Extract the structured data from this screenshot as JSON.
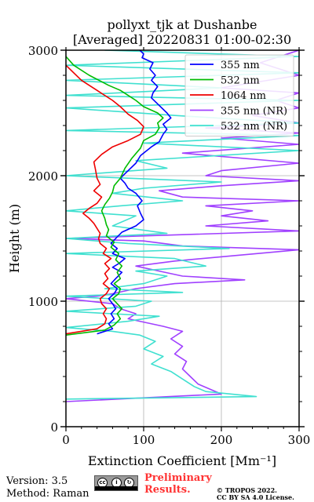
{
  "chart_data": {
    "type": "line",
    "title": [
      "pollyxt_tjk at Dushanbe",
      "[Averaged] 20220831 01:00-02:30"
    ],
    "xlabel": "Extinction Coefficient [Mm⁻¹]",
    "ylabel": "Height (m)",
    "xlim": [
      0,
      300
    ],
    "ylim": [
      0,
      3000
    ],
    "xticks": [
      "0",
      "100",
      "200",
      "300"
    ],
    "yticks": [
      "0",
      "1000",
      "2000",
      "3000"
    ],
    "grid": true,
    "legend_position": "top-right",
    "series": [
      {
        "name": "355 nm",
        "color": "#0000ff",
        "points": [
          [
            40,
            740
          ],
          [
            60,
            780
          ],
          [
            55,
            820
          ],
          [
            62,
            860
          ],
          [
            58,
            900
          ],
          [
            64,
            940
          ],
          [
            60,
            980
          ],
          [
            55,
            1020
          ],
          [
            62,
            1060
          ],
          [
            66,
            1100
          ],
          [
            58,
            1140
          ],
          [
            64,
            1180
          ],
          [
            72,
            1230
          ],
          [
            60,
            1270
          ],
          [
            68,
            1300
          ],
          [
            76,
            1340
          ],
          [
            60,
            1380
          ],
          [
            66,
            1420
          ],
          [
            58,
            1460
          ],
          [
            64,
            1500
          ],
          [
            72,
            1550
          ],
          [
            90,
            1600
          ],
          [
            100,
            1650
          ],
          [
            96,
            1700
          ],
          [
            92,
            1760
          ],
          [
            98,
            1800
          ],
          [
            90,
            1860
          ],
          [
            80,
            1900
          ],
          [
            76,
            1940
          ],
          [
            70,
            1980
          ],
          [
            80,
            2040
          ],
          [
            90,
            2100
          ],
          [
            96,
            2160
          ],
          [
            110,
            2230
          ],
          [
            120,
            2270
          ],
          [
            125,
            2330
          ],
          [
            130,
            2370
          ],
          [
            125,
            2410
          ],
          [
            135,
            2460
          ],
          [
            130,
            2500
          ],
          [
            120,
            2560
          ],
          [
            110,
            2620
          ],
          [
            112,
            2660
          ],
          [
            118,
            2710
          ],
          [
            110,
            2760
          ],
          [
            115,
            2800
          ],
          [
            108,
            2850
          ],
          [
            112,
            2900
          ],
          [
            98,
            2940
          ],
          [
            100,
            2970
          ],
          [
            95,
            3000
          ]
        ]
      },
      {
        "name": "532 nm",
        "color": "#00bb00",
        "points": [
          [
            0,
            730
          ],
          [
            50,
            770
          ],
          [
            62,
            810
          ],
          [
            70,
            860
          ],
          [
            66,
            900
          ],
          [
            72,
            940
          ],
          [
            66,
            980
          ],
          [
            60,
            1020
          ],
          [
            68,
            1060
          ],
          [
            70,
            1100
          ],
          [
            62,
            1140
          ],
          [
            70,
            1180
          ],
          [
            66,
            1230
          ],
          [
            72,
            1280
          ],
          [
            64,
            1330
          ],
          [
            68,
            1380
          ],
          [
            58,
            1430
          ],
          [
            62,
            1470
          ],
          [
            52,
            1520
          ],
          [
            55,
            1570
          ],
          [
            52,
            1610
          ],
          [
            50,
            1660
          ],
          [
            46,
            1720
          ],
          [
            50,
            1770
          ],
          [
            56,
            1820
          ],
          [
            60,
            1870
          ],
          [
            62,
            1920
          ],
          [
            70,
            1980
          ],
          [
            76,
            2060
          ],
          [
            85,
            2140
          ],
          [
            96,
            2220
          ],
          [
            100,
            2280
          ],
          [
            115,
            2330
          ],
          [
            120,
            2380
          ],
          [
            118,
            2420
          ],
          [
            125,
            2460
          ],
          [
            118,
            2500
          ],
          [
            100,
            2550
          ],
          [
            90,
            2600
          ],
          [
            80,
            2640
          ],
          [
            70,
            2680
          ],
          [
            55,
            2720
          ],
          [
            30,
            2800
          ],
          [
            10,
            2880
          ],
          [
            0,
            2950
          ]
        ]
      },
      {
        "name": "1064 nm",
        "color": "#ee0000",
        "points": [
          [
            0,
            740
          ],
          [
            40,
            780
          ],
          [
            50,
            820
          ],
          [
            52,
            860
          ],
          [
            48,
            900
          ],
          [
            52,
            940
          ],
          [
            46,
            980
          ],
          [
            44,
            1020
          ],
          [
            52,
            1060
          ],
          [
            56,
            1100
          ],
          [
            48,
            1140
          ],
          [
            54,
            1180
          ],
          [
            50,
            1220
          ],
          [
            56,
            1260
          ],
          [
            50,
            1300
          ],
          [
            58,
            1340
          ],
          [
            48,
            1380
          ],
          [
            52,
            1420
          ],
          [
            44,
            1460
          ],
          [
            42,
            1500
          ],
          [
            44,
            1540
          ],
          [
            40,
            1580
          ],
          [
            36,
            1620
          ],
          [
            30,
            1660
          ],
          [
            22,
            1700
          ],
          [
            30,
            1740
          ],
          [
            40,
            1780
          ],
          [
            46,
            1830
          ],
          [
            36,
            1880
          ],
          [
            44,
            1930
          ],
          [
            40,
            1980
          ],
          [
            38,
            2050
          ],
          [
            36,
            2110
          ],
          [
            46,
            2170
          ],
          [
            60,
            2230
          ],
          [
            80,
            2280
          ],
          [
            96,
            2330
          ],
          [
            100,
            2390
          ],
          [
            92,
            2440
          ],
          [
            80,
            2490
          ],
          [
            70,
            2550
          ],
          [
            60,
            2600
          ],
          [
            40,
            2680
          ],
          [
            20,
            2760
          ],
          [
            0,
            2880
          ]
        ]
      },
      {
        "name": "355 nm (NR)",
        "color": "#a040ff",
        "points": [
          [
            0,
            200
          ],
          [
            200,
            260
          ],
          [
            185,
            300
          ],
          [
            170,
            340
          ],
          [
            160,
            400
          ],
          [
            150,
            460
          ],
          [
            155,
            520
          ],
          [
            140,
            580
          ],
          [
            150,
            640
          ],
          [
            135,
            700
          ],
          [
            150,
            760
          ],
          [
            125,
            800
          ],
          [
            80,
            860
          ],
          [
            90,
            900
          ],
          [
            70,
            940
          ],
          [
            60,
            980
          ],
          [
            0,
            1020
          ],
          [
            40,
            1040
          ],
          [
            60,
            1060
          ],
          [
            90,
            1100
          ],
          [
            140,
            1140
          ],
          [
            230,
            1170
          ],
          [
            150,
            1200
          ],
          [
            120,
            1240
          ],
          [
            90,
            1280
          ],
          [
            140,
            1320
          ],
          [
            300,
            1410
          ],
          [
            150,
            1440
          ],
          [
            100,
            1480
          ],
          [
            0,
            1500
          ],
          [
            300,
            1560
          ],
          [
            180,
            1600
          ],
          [
            260,
            1640
          ],
          [
            200,
            1680
          ],
          [
            240,
            1720
          ],
          [
            180,
            1760
          ],
          [
            300,
            1800
          ],
          [
            150,
            1830
          ],
          [
            120,
            1880
          ],
          [
            200,
            1920
          ],
          [
            300,
            1960
          ],
          [
            180,
            2000
          ],
          [
            200,
            2040
          ],
          [
            300,
            2100
          ],
          [
            150,
            2180
          ],
          [
            300,
            2250
          ],
          [
            200,
            2300
          ],
          [
            300,
            2340
          ],
          [
            180,
            2380
          ],
          [
            300,
            2420
          ],
          [
            240,
            2480
          ],
          [
            300,
            2540
          ],
          [
            270,
            2600
          ],
          [
            300,
            2660
          ],
          [
            200,
            2700
          ],
          [
            300,
            2800
          ],
          [
            250,
            2900
          ],
          [
            300,
            3000
          ]
        ]
      },
      {
        "name": "532 nm (NR)",
        "color": "#40e0d0",
        "points": [
          [
            0,
            220
          ],
          [
            245,
            240
          ],
          [
            180,
            280
          ],
          [
            165,
            320
          ],
          [
            150,
            380
          ],
          [
            135,
            440
          ],
          [
            110,
            500
          ],
          [
            125,
            560
          ],
          [
            100,
            620
          ],
          [
            115,
            680
          ],
          [
            95,
            730
          ],
          [
            60,
            760
          ],
          [
            0,
            790
          ],
          [
            80,
            840
          ],
          [
            120,
            880
          ],
          [
            0,
            920
          ],
          [
            90,
            960
          ],
          [
            110,
            1000
          ],
          [
            0,
            1040
          ],
          [
            150,
            1070
          ],
          [
            50,
            1100
          ],
          [
            100,
            1140
          ],
          [
            130,
            1200
          ],
          [
            90,
            1240
          ],
          [
            180,
            1280
          ],
          [
            140,
            1340
          ],
          [
            0,
            1380
          ],
          [
            210,
            1420
          ],
          [
            80,
            1460
          ],
          [
            0,
            1500
          ],
          [
            130,
            1540
          ],
          [
            60,
            1600
          ],
          [
            90,
            1680
          ],
          [
            0,
            1720
          ],
          [
            70,
            1760
          ],
          [
            150,
            1800
          ],
          [
            60,
            1860
          ],
          [
            100,
            1900
          ],
          [
            200,
            1950
          ],
          [
            0,
            2000
          ],
          [
            130,
            2060
          ],
          [
            90,
            2120
          ],
          [
            300,
            2200
          ],
          [
            100,
            2260
          ],
          [
            300,
            2320
          ],
          [
            0,
            2360
          ],
          [
            300,
            2420
          ],
          [
            140,
            2480
          ],
          [
            0,
            2540
          ],
          [
            300,
            2600
          ],
          [
            0,
            2640
          ],
          [
            200,
            2700
          ],
          [
            0,
            2760
          ],
          [
            300,
            2820
          ],
          [
            0,
            2880
          ],
          [
            300,
            2950
          ],
          [
            50,
            3000
          ]
        ]
      }
    ]
  },
  "footer": {
    "version": "Version: 3.5",
    "method": "Method: Raman",
    "badge_cc": "cc",
    "badge_by": "BY",
    "badge_sa": "SA",
    "prelim_line1": "Preliminary",
    "prelim_line2": "Results.",
    "copyright_line1": "© TROPOS 2022.",
    "copyright_line2": "CC BY SA 4.0 License."
  }
}
